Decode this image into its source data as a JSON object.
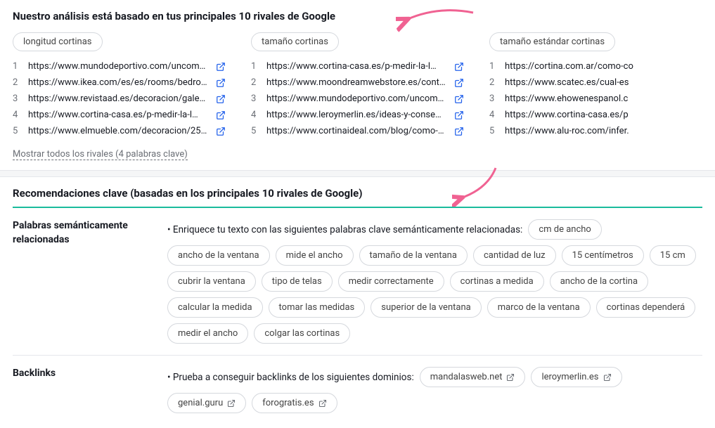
{
  "analysis": {
    "title": "Nuestro análisis está basado en tus principales 10 rivales de Google",
    "columns": [
      {
        "keyword": "longitud cortinas",
        "urls": [
          "https://www.mundodeportivo.com/uncomo/ho…",
          "https://www.ikea.com/es/es/rooms/bedroom…",
          "https://www.revistaad.es/decoracion/gale…",
          "https://www.cortina-casa.es/p-medir-la-l…",
          "https://www.elmueble.com/decoracion/25-c…"
        ]
      },
      {
        "keyword": "tamaño cortinas",
        "urls": [
          "https://www.cortina-casa.es/p-medir-la-l…",
          "https://www.moondreamwebstore.es/content…",
          "https://www.mundodeportivo.com/uncomo/ho…",
          "https://www.leroymerlin.es/ideas-y-conse…",
          "https://www.cortinaideal.com/blog/como-m…"
        ]
      },
      {
        "keyword": "tamaño estándar cortinas",
        "urls": [
          "https://cortina.com.ar/como-co",
          "https://www.scatec.es/cual-es",
          "https://www.ehowenespanol.c",
          "https://www.cortina-casa.es/p",
          "https://www.alu-roc.com/infer."
        ]
      }
    ],
    "showAll": "Mostrar todos los rivales (4 palabras clave)"
  },
  "recommendations": {
    "title": "Recomendaciones clave (basadas en los principales 10 rivales de Google)",
    "semantic": {
      "label": "Palabras semánticamente relacionadas",
      "intro": "• Enriquece tu texto con las siguientes palabras clave semánticamente relacionadas:",
      "pills": [
        "cm de ancho",
        "ancho de la ventana",
        "mide el ancho",
        "tamaño de la ventana",
        "cantidad de luz",
        "15 centímetros",
        "15 cm",
        "cubrir la ventana",
        "tipo de telas",
        "medir correctamente",
        "cortinas a medida",
        "ancho de la cortina",
        "calcular la medida",
        "tomar las medidas",
        "superior de la ventana",
        "marco de la ventana",
        "cortinas dependerá",
        "medir el ancho",
        "colgar las cortinas"
      ]
    },
    "backlinks": {
      "label": "Backlinks",
      "intro": "• Prueba a conseguir backlinks de los siguientes dominios:",
      "pills": [
        "mandalasweb.net",
        "leroymerlin.es",
        "genial.guru",
        "forogratis.es"
      ]
    }
  },
  "colors": {
    "link": "#2563eb",
    "arrow": "#f06292",
    "teal": "#1abc9c"
  }
}
